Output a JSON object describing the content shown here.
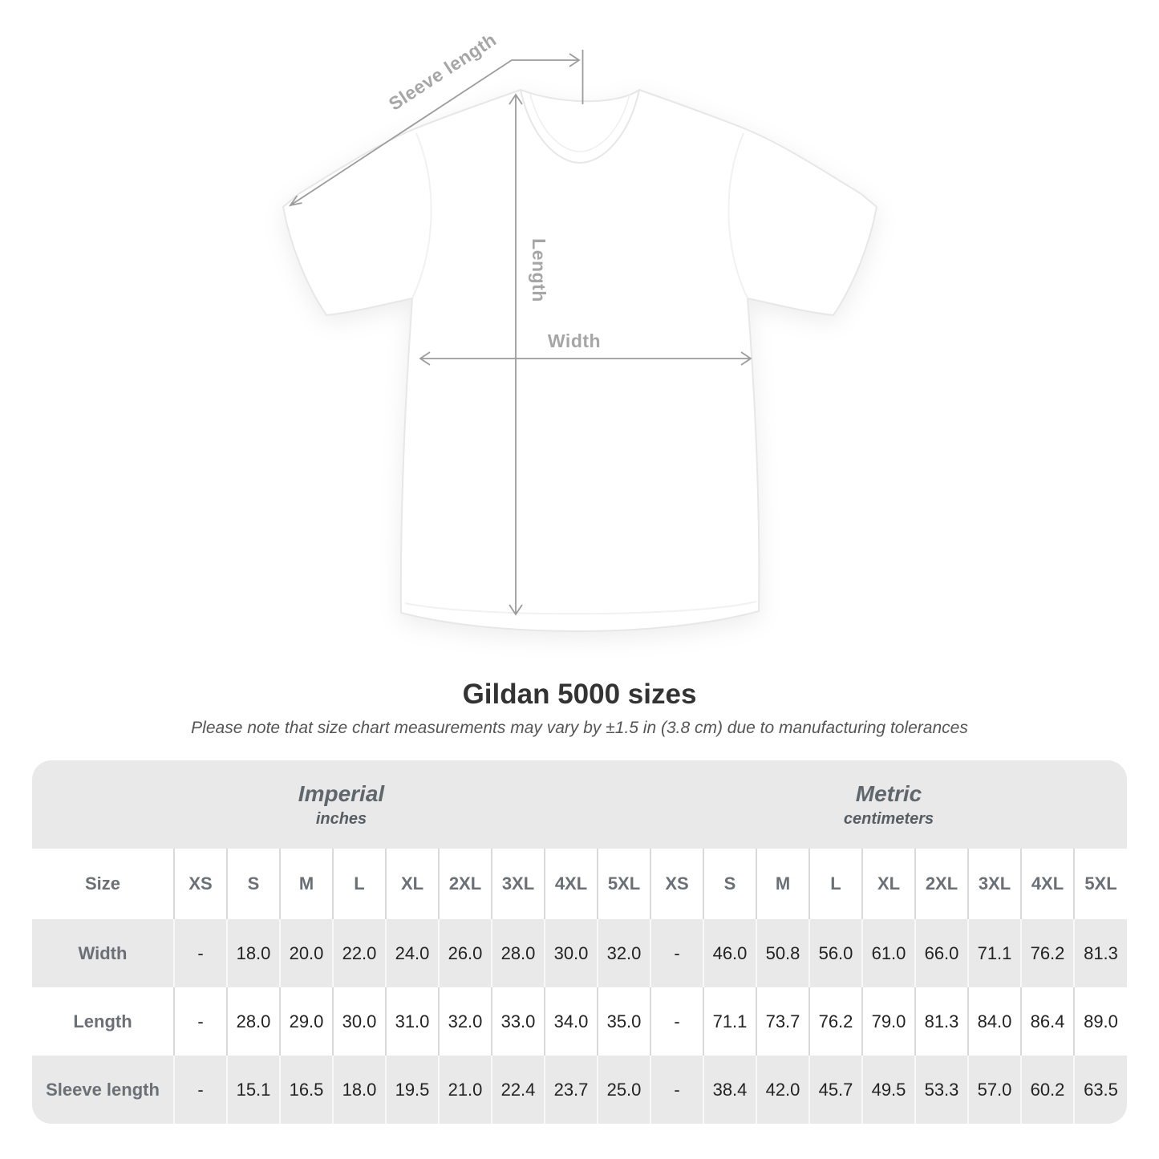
{
  "diagram": {
    "labels": {
      "sleeve_length": "Sleeve length",
      "length": "Length",
      "width": "Width"
    }
  },
  "title": "Gildan 5000 sizes",
  "subtitle": "Please note that size chart measurements may vary by ±1.5 in (3.8 cm) due to manufacturing tolerances",
  "table": {
    "unit_groups": [
      {
        "label": "Imperial",
        "sublabel": "inches"
      },
      {
        "label": "Metric",
        "sublabel": "centimeters"
      }
    ],
    "size_header": "Size",
    "sizes": [
      "XS",
      "S",
      "M",
      "L",
      "XL",
      "2XL",
      "3XL",
      "4XL",
      "5XL"
    ],
    "rows": [
      {
        "label": "Width",
        "imperial": [
          "-",
          "18.0",
          "20.0",
          "22.0",
          "24.0",
          "26.0",
          "28.0",
          "30.0",
          "32.0"
        ],
        "metric": [
          "-",
          "46.0",
          "50.8",
          "56.0",
          "61.0",
          "66.0",
          "71.1",
          "76.2",
          "81.3"
        ]
      },
      {
        "label": "Length",
        "imperial": [
          "-",
          "28.0",
          "29.0",
          "30.0",
          "31.0",
          "32.0",
          "33.0",
          "34.0",
          "35.0"
        ],
        "metric": [
          "-",
          "71.1",
          "73.7",
          "76.2",
          "79.0",
          "81.3",
          "84.0",
          "86.4",
          "89.0"
        ]
      },
      {
        "label": "Sleeve length",
        "imperial": [
          "-",
          "15.1",
          "16.5",
          "18.0",
          "19.5",
          "21.0",
          "22.4",
          "23.7",
          "25.0"
        ],
        "metric": [
          "-",
          "38.4",
          "42.0",
          "45.7",
          "49.5",
          "53.3",
          "57.0",
          "60.2",
          "63.5"
        ]
      }
    ]
  },
  "colors": {
    "band_gray": "#e9e9e9",
    "separator_on_white": "#d9d9d9",
    "separator_on_gray": "#f8f8f8",
    "label_gray": "#6a7076",
    "value_dark": "#232323",
    "annotation_line": "#9c9c9c",
    "annotation_text": "#a6a6a6"
  }
}
